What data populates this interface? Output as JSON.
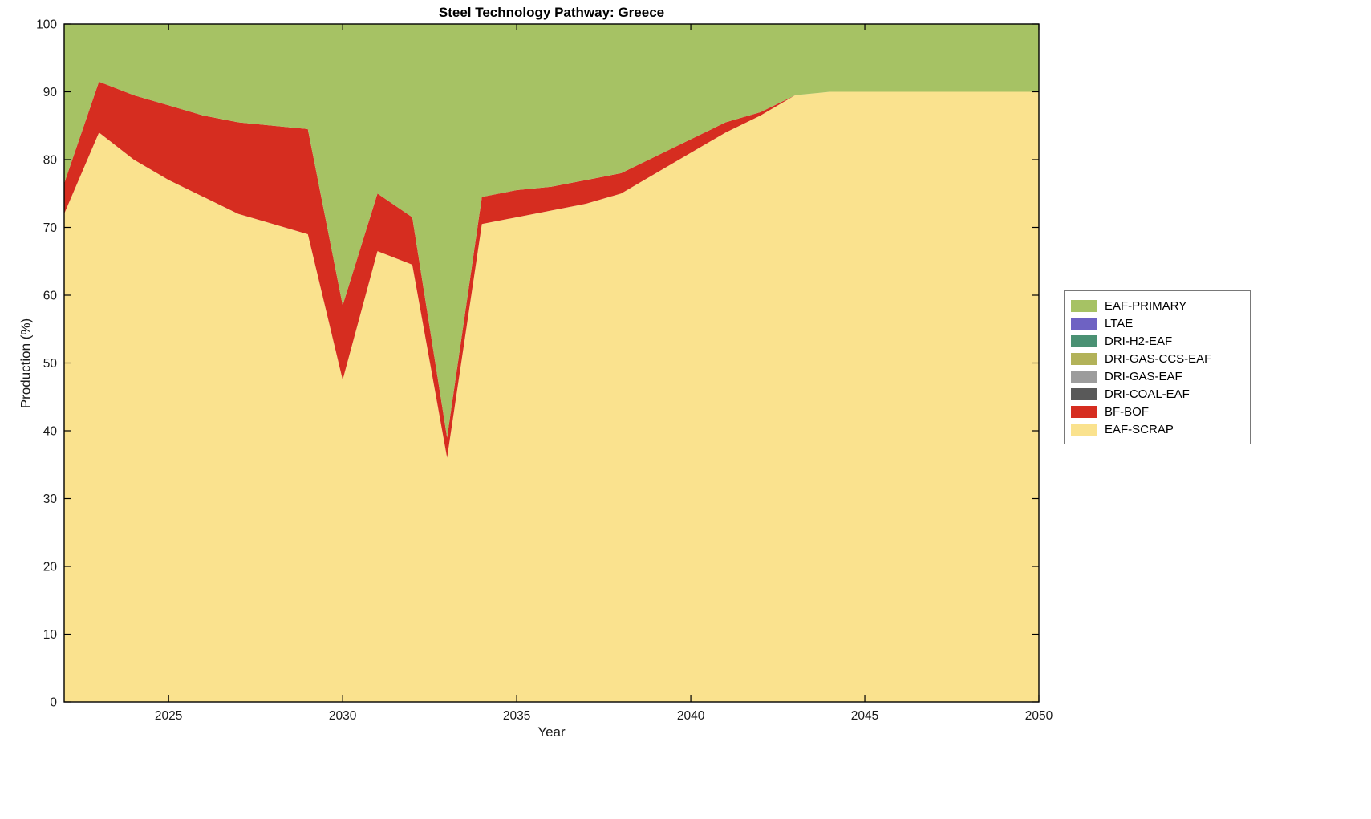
{
  "chart_data": {
    "type": "area",
    "stacked": true,
    "title": "Steel Technology Pathway: Greece",
    "xlabel": "Year",
    "ylabel": "Production (%)",
    "xlim": [
      2022,
      2050
    ],
    "ylim": [
      0,
      100
    ],
    "xticks": [
      2025,
      2030,
      2035,
      2040,
      2045,
      2050
    ],
    "yticks": [
      0,
      10,
      20,
      30,
      40,
      50,
      60,
      70,
      80,
      90,
      100
    ],
    "grid": false,
    "legend_position": "right-outside",
    "legend_order_top_to_bottom": [
      "EAF-PRIMARY",
      "LTAE",
      "DRI-H2-EAF",
      "DRI-GAS-CCS-EAF",
      "DRI-GAS-EAF",
      "DRI-COAL-EAF",
      "BF-BOF",
      "EAF-SCRAP"
    ],
    "stack_order_bottom_to_top": [
      "EAF-SCRAP",
      "BF-BOF",
      "DRI-COAL-EAF",
      "DRI-GAS-EAF",
      "DRI-GAS-CCS-EAF",
      "DRI-H2-EAF",
      "LTAE",
      "EAF-PRIMARY"
    ],
    "x": [
      2022,
      2023,
      2024,
      2025,
      2026,
      2027,
      2028,
      2029,
      2030,
      2031,
      2032,
      2033,
      2034,
      2035,
      2036,
      2037,
      2038,
      2039,
      2040,
      2041,
      2042,
      2043,
      2044,
      2045,
      2046,
      2047,
      2048,
      2049,
      2050
    ],
    "series": [
      {
        "name": "EAF-SCRAP",
        "color": "#fae28e",
        "values": [
          72,
          84,
          80,
          77,
          74.5,
          72,
          70.5,
          69,
          47.5,
          66.5,
          64.5,
          36,
          70.5,
          71.5,
          72.5,
          73.5,
          75,
          78,
          81,
          84,
          86.5,
          89.5,
          90,
          90,
          90,
          90,
          90,
          90,
          90
        ]
      },
      {
        "name": "BF-BOF",
        "color": "#d62d20",
        "values": [
          4.5,
          7.5,
          9.5,
          11,
          12,
          13.5,
          14.5,
          15.5,
          11,
          8.5,
          7,
          3,
          4,
          4,
          3.5,
          3.5,
          3,
          2.5,
          2,
          1.5,
          0.5,
          0,
          0,
          0,
          0,
          0,
          0,
          0,
          0
        ]
      },
      {
        "name": "DRI-COAL-EAF",
        "color": "#595959",
        "values": [
          0,
          0,
          0,
          0,
          0,
          0,
          0,
          0,
          0,
          0,
          0,
          0,
          0,
          0,
          0,
          0,
          0,
          0,
          0,
          0,
          0,
          0,
          0,
          0,
          0,
          0,
          0,
          0,
          0
        ]
      },
      {
        "name": "DRI-GAS-EAF",
        "color": "#9c9c9c",
        "values": [
          0,
          0,
          0,
          0,
          0,
          0,
          0,
          0,
          0,
          0,
          0,
          0,
          0,
          0,
          0,
          0,
          0,
          0,
          0,
          0,
          0,
          0,
          0,
          0,
          0,
          0,
          0,
          0,
          0
        ]
      },
      {
        "name": "DRI-GAS-CCS-EAF",
        "color": "#b2b259",
        "values": [
          0,
          0,
          0,
          0,
          0,
          0,
          0,
          0,
          0,
          0,
          0,
          0,
          0,
          0,
          0,
          0,
          0,
          0,
          0,
          0,
          0,
          0,
          0,
          0,
          0,
          0,
          0,
          0,
          0
        ]
      },
      {
        "name": "DRI-H2-EAF",
        "color": "#4a9173",
        "values": [
          0,
          0,
          0,
          0,
          0,
          0,
          0,
          0,
          0,
          0,
          0,
          0,
          0,
          0,
          0,
          0,
          0,
          0,
          0,
          0,
          0,
          0,
          0,
          0,
          0,
          0,
          0,
          0,
          0
        ]
      },
      {
        "name": "LTAE",
        "color": "#6e62c3",
        "values": [
          0,
          0,
          0,
          0,
          0,
          0,
          0,
          0,
          0,
          0,
          0,
          0,
          0,
          0,
          0,
          0,
          0,
          0,
          0,
          0,
          0,
          0,
          0,
          0,
          0,
          0,
          0,
          0,
          0
        ]
      },
      {
        "name": "EAF-PRIMARY",
        "color": "#a6c264",
        "values": [
          23.5,
          8.5,
          10.5,
          12,
          13.5,
          14.5,
          15,
          15.5,
          41.5,
          25,
          28.5,
          61,
          25.5,
          24.5,
          24,
          23,
          22,
          19.5,
          17,
          14.5,
          13,
          10.5,
          10,
          10,
          10,
          10,
          10,
          10,
          10
        ]
      }
    ]
  }
}
